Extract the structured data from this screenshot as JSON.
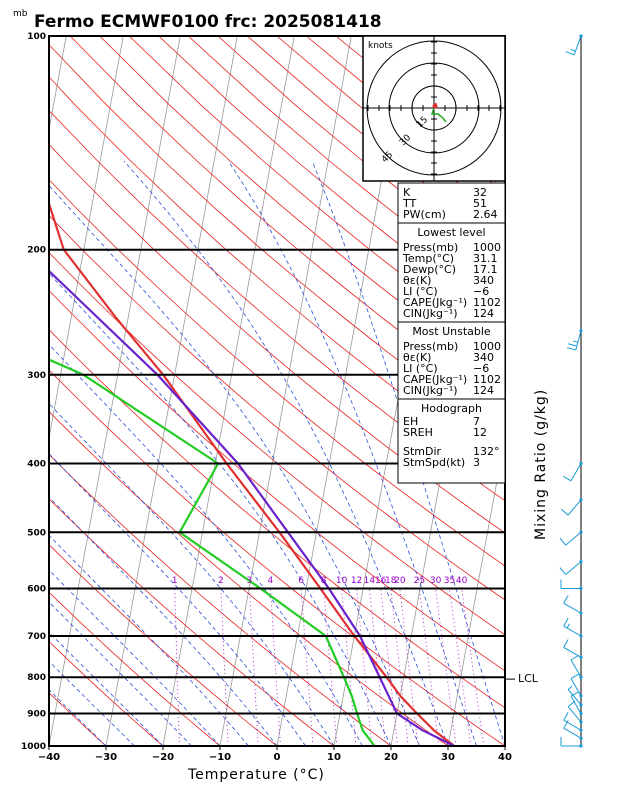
{
  "title": "Fermo ECMWF0100 frc: 2025081418",
  "pressure_unit": "mb",
  "hodo_unit": "knots",
  "x_axis_label": "Temperature (°C)",
  "y_axis_right_label": "Mixing Ratio (g/kg)",
  "lcl_label": "LCL",
  "indices": {
    "top": [
      [
        "K",
        "32"
      ],
      [
        "TT",
        "51"
      ],
      [
        "PW(cm)",
        "2.64"
      ]
    ],
    "lowest_title": "Lowest level",
    "lowest": [
      [
        "Press(mb)",
        "1000"
      ],
      [
        "Temp(°C)",
        "31.1"
      ],
      [
        "Dewp(°C)",
        "17.1"
      ],
      [
        "θε(K)",
        "340"
      ],
      [
        "LI (°C)",
        "−6"
      ],
      [
        "CAPE(Jkg⁻¹)",
        "1102"
      ],
      [
        "CIN(Jkg⁻¹)",
        "124"
      ]
    ],
    "mu_title": "Most Unstable",
    "mu": [
      [
        "Press(mb)",
        "1000"
      ],
      [
        "θε(K)",
        "340"
      ],
      [
        "LI (°C)",
        "−6"
      ],
      [
        "CAPE(Jkg⁻¹)",
        "1102"
      ],
      [
        "CIN(Jkg⁻¹)",
        "124"
      ]
    ],
    "hodo_title": "Hodograph",
    "hodo": [
      [
        "EH",
        "7"
      ],
      [
        "SREH",
        "12"
      ]
    ],
    "storm": [
      [
        "StmDir",
        "132°"
      ],
      [
        "StmSpd(kt)",
        "3"
      ]
    ]
  },
  "chart_data": {
    "type": "line",
    "chart_kind": "skew-T log-P diagram",
    "x_ticks": [
      "−40",
      "−30",
      "−20",
      "−10",
      "0",
      "10",
      "20",
      "30",
      "40"
    ],
    "p_ticks": [
      "100",
      "200",
      "300",
      "400",
      "500",
      "600",
      "700",
      "800",
      "900",
      "1000"
    ],
    "mixing_ratio_labels": [
      "1",
      "2",
      "3",
      "4",
      "6",
      "8",
      "10",
      "12",
      "14",
      "16",
      "18",
      "20",
      "25",
      "30",
      "35",
      "40"
    ],
    "temperature_profile": [
      {
        "p": 1000,
        "t": 31.1
      },
      {
        "p": 950,
        "t": 27.0
      },
      {
        "p": 900,
        "t": 23.5
      },
      {
        "p": 850,
        "t": 20.0
      },
      {
        "p": 800,
        "t": 17.0
      },
      {
        "p": 700,
        "t": 10.0
      },
      {
        "p": 600,
        "t": 2.5
      },
      {
        "p": 500,
        "t": -6.5
      },
      {
        "p": 400,
        "t": -18.0
      },
      {
        "p": 300,
        "t": -32.0
      },
      {
        "p": 250,
        "t": -42.0
      },
      {
        "p": 200,
        "t": -53.5
      },
      {
        "p": 100,
        "t": -72.5
      }
    ],
    "dewpoint_profile": [
      {
        "p": 1000,
        "t": 17.1
      },
      {
        "p": 950,
        "t": 14.5
      },
      {
        "p": 900,
        "t": 13.0
      },
      {
        "p": 850,
        "t": 11.5
      },
      {
        "p": 800,
        "t": 9.5
      },
      {
        "p": 700,
        "t": 5.0
      },
      {
        "p": 600,
        "t": -8.0
      },
      {
        "p": 500,
        "t": -24.0
      },
      {
        "p": 400,
        "t": -19.5
      },
      {
        "p": 300,
        "t": -46.0
      },
      {
        "p": 260,
        "t": -65.0
      },
      {
        "p": 200,
        "t": -79.0
      },
      {
        "p": 100,
        "t": -102.0
      }
    ],
    "parcel_profile": [
      {
        "p": 1000,
        "t": 31.1
      },
      {
        "p": 950,
        "t": 25.0
      },
      {
        "p": 900,
        "t": 20.0
      },
      {
        "p": 805,
        "t": 16.0
      },
      {
        "p": 700,
        "t": 11.0
      },
      {
        "p": 600,
        "t": 4.0
      },
      {
        "p": 500,
        "t": -5.0
      },
      {
        "p": 400,
        "t": -16.0
      },
      {
        "p": 300,
        "t": -33.0
      },
      {
        "p": 200,
        "t": -60.0
      },
      {
        "p": 120,
        "t": -90.0
      }
    ],
    "wind_profile": [
      {
        "p": 1000,
        "spd": 10,
        "dir": 270
      },
      {
        "p": 975,
        "spd": 10,
        "dir": 300
      },
      {
        "p": 950,
        "spd": 10,
        "dir": 300
      },
      {
        "p": 925,
        "spd": 10,
        "dir": 320
      },
      {
        "p": 900,
        "spd": 10,
        "dir": 330
      },
      {
        "p": 875,
        "spd": 5,
        "dir": 320
      },
      {
        "p": 850,
        "spd": 10,
        "dir": 330
      },
      {
        "p": 800,
        "spd": 10,
        "dir": 330
      },
      {
        "p": 750,
        "spd": 10,
        "dir": 300
      },
      {
        "p": 700,
        "spd": 15,
        "dir": 300
      },
      {
        "p": 650,
        "spd": 10,
        "dir": 300
      },
      {
        "p": 600,
        "spd": 10,
        "dir": 270
      },
      {
        "p": 550,
        "spd": 10,
        "dir": 230
      },
      {
        "p": 500,
        "spd": 10,
        "dir": 230
      },
      {
        "p": 450,
        "spd": 10,
        "dir": 220
      },
      {
        "p": 400,
        "spd": 10,
        "dir": 210
      },
      {
        "p": 260,
        "spd": 25,
        "dir": 195
      },
      {
        "p": 100,
        "spd": 15,
        "dir": 200
      }
    ],
    "hodo_rings": [
      "15",
      "30",
      "45"
    ]
  }
}
